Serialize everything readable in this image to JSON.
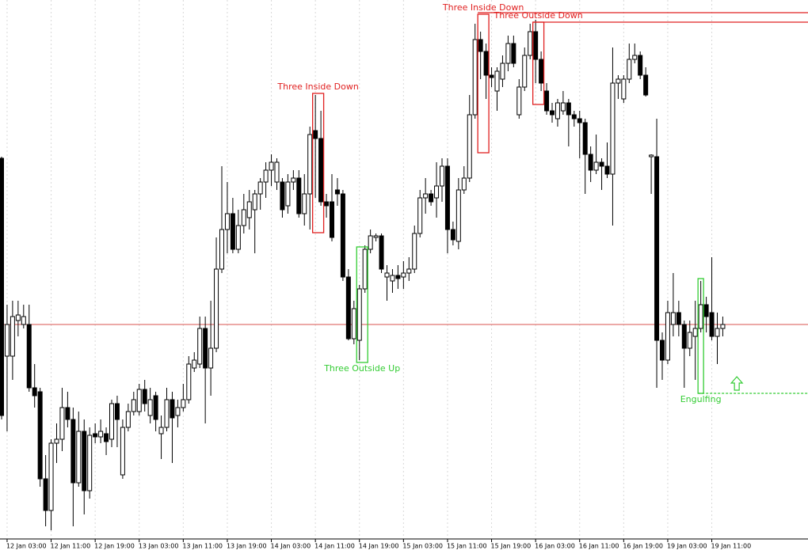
{
  "chart_data": {
    "type": "candlestick",
    "ylim": [
      20,
      700
    ],
    "up_color": "#ffffff",
    "down_color": "#000000",
    "edge_color": "#000000",
    "hline": {
      "value": 290,
      "color": "#d9534f"
    },
    "categories": [
      null,
      "12 Jan 03:00",
      null,
      null,
      null,
      null,
      null,
      null,
      null,
      "12 Jan 11:00",
      null,
      null,
      null,
      null,
      null,
      null,
      null,
      "12 Jan 19:00",
      null,
      null,
      null,
      null,
      null,
      null,
      null,
      "13 Jan 03:00",
      null,
      null,
      null,
      null,
      null,
      null,
      null,
      "13 Jan 11:00",
      null,
      null,
      null,
      null,
      null,
      null,
      null,
      "13 Jan 19:00",
      null,
      null,
      null,
      null,
      null,
      null,
      null,
      "14 Jan 03:00",
      null,
      null,
      null,
      null,
      null,
      null,
      null,
      "14 Jan 11:00",
      null,
      null,
      null,
      null,
      null,
      null,
      null,
      "14 Jan 19:00",
      null,
      null,
      null,
      null,
      null,
      null,
      null,
      "15 Jan 03:00",
      null,
      null,
      null,
      null,
      null,
      null,
      null,
      "15 Jan 11:00",
      null,
      null,
      null,
      null,
      null,
      null,
      null,
      "15 Jan 19:00",
      null,
      null,
      null,
      null,
      null,
      null,
      null,
      "16 Jan 03:00",
      null,
      null,
      null,
      null,
      null,
      null,
      null,
      "16 Jan 11:00",
      null,
      null,
      null,
      null,
      null,
      null,
      null,
      "16 Jan 19:00",
      null,
      null,
      null,
      null,
      null,
      null,
      null,
      "19 Jan 03:00",
      null,
      null,
      null,
      null,
      null,
      null,
      null,
      "19 Jan 11:00",
      null,
      null
    ],
    "ohlc": [
      [
        500,
        502,
        170,
        175
      ],
      [
        250,
        315,
        155,
        290
      ],
      [
        250,
        320,
        220,
        300
      ],
      [
        295,
        320,
        275,
        302
      ],
      [
        290,
        315,
        285,
        300
      ],
      [
        290,
        315,
        205,
        210
      ],
      [
        210,
        240,
        185,
        200
      ],
      [
        205,
        210,
        85,
        95
      ],
      [
        95,
        125,
        35,
        55
      ],
      [
        55,
        145,
        30,
        140
      ],
      [
        140,
        165,
        115,
        145
      ],
      [
        145,
        210,
        130,
        185
      ],
      [
        185,
        205,
        160,
        170
      ],
      [
        170,
        185,
        35,
        90
      ],
      [
        90,
        180,
        85,
        155
      ],
      [
        155,
        170,
        50,
        80
      ],
      [
        80,
        160,
        70,
        150
      ],
      [
        152,
        165,
        140,
        148
      ],
      [
        148,
        170,
        140,
        155
      ],
      [
        152,
        160,
        125,
        142
      ],
      [
        145,
        195,
        135,
        190
      ],
      [
        190,
        200,
        135,
        170
      ],
      [
        100,
        170,
        95,
        160
      ],
      [
        160,
        190,
        155,
        180
      ],
      [
        180,
        205,
        175,
        195
      ],
      [
        180,
        215,
        175,
        208
      ],
      [
        208,
        220,
        180,
        190
      ],
      [
        175,
        210,
        165,
        195
      ],
      [
        200,
        205,
        155,
        170
      ],
      [
        152,
        175,
        120,
        160
      ],
      [
        160,
        210,
        155,
        195
      ],
      [
        195,
        205,
        115,
        172
      ],
      [
        175,
        195,
        160,
        185
      ],
      [
        185,
        215,
        180,
        195
      ],
      [
        195,
        250,
        190,
        240
      ],
      [
        235,
        255,
        230,
        245
      ],
      [
        240,
        300,
        235,
        285
      ],
      [
        285,
        300,
        165,
        235
      ],
      [
        235,
        320,
        200,
        260
      ],
      [
        260,
        400,
        255,
        360
      ],
      [
        360,
        490,
        355,
        410
      ],
      [
        410,
        470,
        380,
        430
      ],
      [
        430,
        450,
        380,
        385
      ],
      [
        385,
        435,
        380,
        415
      ],
      [
        415,
        455,
        405,
        435
      ],
      [
        425,
        460,
        410,
        445
      ],
      [
        435,
        460,
        380,
        455
      ],
      [
        455,
        475,
        435,
        470
      ],
      [
        470,
        495,
        450,
        485
      ],
      [
        485,
        505,
        465,
        495
      ],
      [
        470,
        500,
        460,
        495
      ],
      [
        470,
        475,
        425,
        435
      ],
      [
        440,
        480,
        430,
        470
      ],
      [
        470,
        485,
        460,
        475
      ],
      [
        475,
        485,
        425,
        430
      ],
      [
        430,
        480,
        415,
        455
      ],
      [
        455,
        540,
        410,
        530
      ],
      [
        535,
        580,
        450,
        525
      ],
      [
        525,
        560,
        440,
        445
      ],
      [
        445,
        455,
        425,
        440
      ],
      [
        445,
        480,
        395,
        400
      ],
      [
        460,
        475,
        440,
        455
      ],
      [
        455,
        460,
        345,
        350
      ],
      [
        350,
        360,
        270,
        272
      ],
      [
        272,
        320,
        265,
        310
      ],
      [
        270,
        340,
        245,
        335
      ],
      [
        335,
        390,
        330,
        385
      ],
      [
        385,
        410,
        380,
        402
      ],
      [
        400,
        405,
        395,
        402
      ],
      [
        402,
        405,
        355,
        360
      ],
      [
        350,
        365,
        320,
        355
      ],
      [
        345,
        360,
        330,
        352
      ],
      [
        352,
        365,
        335,
        348
      ],
      [
        350,
        370,
        335,
        355
      ],
      [
        355,
        375,
        345,
        360
      ],
      [
        360,
        415,
        355,
        405
      ],
      [
        405,
        460,
        400,
        450
      ],
      [
        450,
        475,
        430,
        455
      ],
      [
        455,
        460,
        440,
        445
      ],
      [
        450,
        495,
        425,
        465
      ],
      [
        465,
        500,
        445,
        490
      ],
      [
        490,
        500,
        380,
        410
      ],
      [
        410,
        420,
        390,
        397
      ],
      [
        395,
        475,
        385,
        460
      ],
      [
        460,
        490,
        455,
        475
      ],
      [
        475,
        580,
        470,
        555
      ],
      [
        555,
        670,
        550,
        650
      ],
      [
        650,
        660,
        600,
        635
      ],
      [
        635,
        645,
        575,
        605
      ],
      [
        605,
        615,
        590,
        602
      ],
      [
        585,
        615,
        560,
        610
      ],
      [
        600,
        630,
        590,
        620
      ],
      [
        620,
        655,
        610,
        645
      ],
      [
        645,
        655,
        615,
        620
      ],
      [
        555,
        600,
        550,
        590
      ],
      [
        590,
        640,
        585,
        630
      ],
      [
        630,
        670,
        625,
        660
      ],
      [
        660,
        675,
        595,
        625
      ],
      [
        625,
        635,
        585,
        595
      ],
      [
        585,
        595,
        555,
        560
      ],
      [
        560,
        570,
        545,
        555
      ],
      [
        550,
        575,
        540,
        570
      ],
      [
        560,
        585,
        555,
        570
      ],
      [
        570,
        575,
        515,
        555
      ],
      [
        555,
        560,
        540,
        550
      ],
      [
        550,
        560,
        500,
        545
      ],
      [
        545,
        550,
        455,
        505
      ],
      [
        505,
        515,
        470,
        485
      ],
      [
        485,
        530,
        480,
        495
      ],
      [
        495,
        500,
        460,
        490
      ],
      [
        490,
        520,
        475,
        480
      ],
      [
        480,
        640,
        415,
        595
      ],
      [
        595,
        605,
        575,
        600
      ],
      [
        575,
        605,
        570,
        600
      ],
      [
        600,
        645,
        595,
        625
      ],
      [
        625,
        645,
        620,
        630
      ],
      [
        630,
        635,
        600,
        605
      ],
      [
        605,
        615,
        578,
        580
      ],
      [
        502,
        505,
        455,
        504
      ],
      [
        502,
        550,
        210,
        270
      ],
      [
        270,
        280,
        220,
        245
      ],
      [
        245,
        320,
        240,
        305
      ],
      [
        290,
        355,
        275,
        305
      ],
      [
        305,
        320,
        275,
        290
      ],
      [
        290,
        295,
        210,
        260
      ],
      [
        260,
        295,
        250,
        280
      ],
      [
        275,
        320,
        220,
        285
      ],
      [
        285,
        345,
        280,
        315
      ],
      [
        315,
        325,
        280,
        300
      ],
      [
        305,
        375,
        270,
        275
      ],
      [
        275,
        305,
        240,
        285
      ],
      [
        285,
        300,
        275,
        290
      ]
    ],
    "annotations": [
      {
        "label": "Three Inside Down",
        "start": 57,
        "end": 58,
        "top": 582,
        "bottom": 406,
        "color": "#e02020",
        "position": "above"
      },
      {
        "label": "Three Inside Down",
        "start": 87,
        "end": 88,
        "top": 682,
        "bottom": 507,
        "color": "#e02020",
        "position": "above",
        "level": 684
      },
      {
        "label": "Three Outside Down",
        "start": 97,
        "end": 98,
        "top": 672,
        "bottom": 568,
        "color": "#e02020",
        "position": "above",
        "level": 672
      },
      {
        "label": "Three Outside Up",
        "start": 65,
        "end": 66,
        "top": 388,
        "bottom": 242,
        "color": "#33cc33",
        "position": "below"
      },
      {
        "label": "Engulfing",
        "start": 127,
        "end": 127,
        "top": 348,
        "bottom": 203,
        "color": "#33cc33",
        "position": "below",
        "level": 203,
        "level_style": "dashed",
        "arrow": "up"
      }
    ]
  }
}
